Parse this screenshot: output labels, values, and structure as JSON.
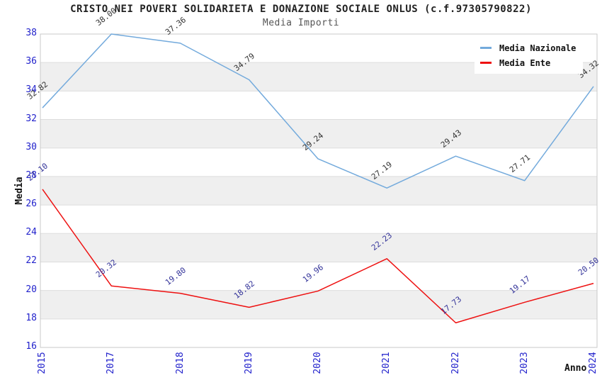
{
  "chart_data": {
    "type": "line",
    "title": "CRISTO NEI POVERI SOLIDARIETA E DONAZIONE SOCIALE ONLUS (c.f.97305790822)",
    "subtitle": "Media Importi",
    "xlabel": "Anno",
    "ylabel": "Media",
    "categories": [
      "2015",
      "2017",
      "2018",
      "2019",
      "2020",
      "2021",
      "2022",
      "2023",
      "2024"
    ],
    "series": [
      {
        "name": "Media Nazionale",
        "color": "#73AADC",
        "label_color": "#333333",
        "values": [
          32.82,
          38.0,
          37.36,
          34.79,
          29.24,
          27.19,
          29.43,
          27.71,
          34.32
        ]
      },
      {
        "name": "Media Ente",
        "color": "#EE1111",
        "label_color": "#333399",
        "values": [
          27.1,
          20.32,
          19.8,
          18.82,
          19.96,
          22.23,
          17.73,
          19.17,
          20.5
        ]
      }
    ],
    "ylim": [
      16,
      38
    ],
    "y_ticks": [
      16,
      18,
      20,
      22,
      24,
      26,
      28,
      30,
      32,
      34,
      36,
      38
    ],
    "gray_bands": [
      [
        18,
        20
      ],
      [
        22,
        24
      ],
      [
        26,
        28
      ],
      [
        30,
        32
      ],
      [
        34,
        36
      ]
    ],
    "grid": true,
    "legend_position": "top-right",
    "value_label_format": "0.00",
    "colors": {
      "tick_label": "#2222CC",
      "grid_line": "#DDDDDD",
      "plot_border": "#C9C9C9",
      "band_fill": "#EFEFEF",
      "title": "#222222",
      "subtitle": "#555555"
    }
  }
}
